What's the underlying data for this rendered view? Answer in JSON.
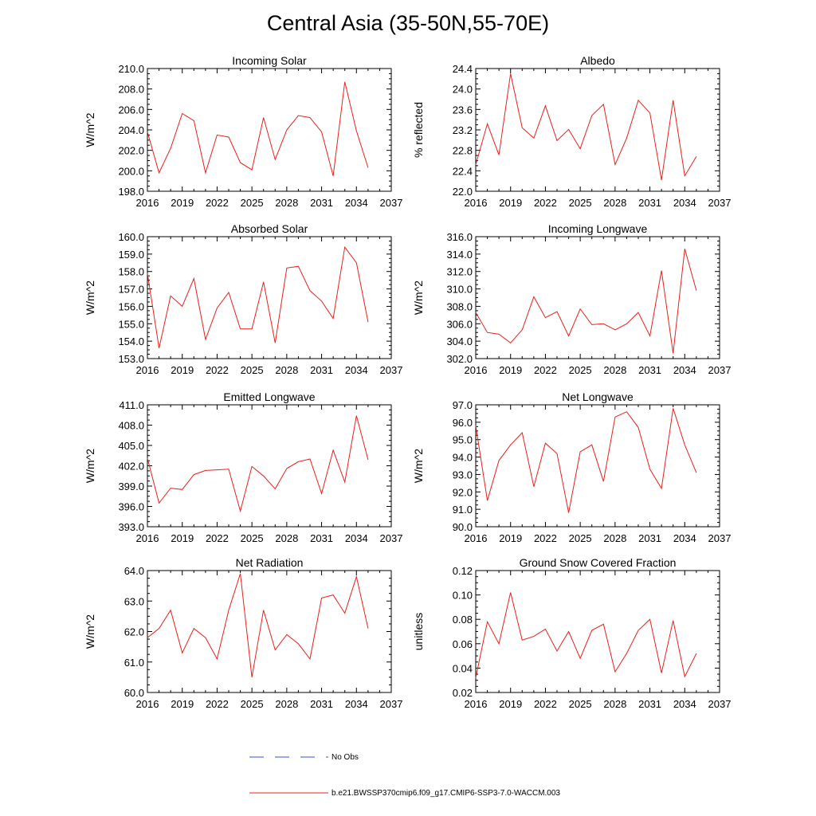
{
  "page": {
    "title": "Central Asia (35-50N,55-70E)"
  },
  "legend": {
    "items": [
      {
        "label": "No Obs",
        "color": "#3b4bd8",
        "style": "dashed"
      },
      {
        "label": "b.e21.BWSSP370cmip6.f09_g17.CMIP6-SSP3-7.0-WACCM.003",
        "color": "#e8201c",
        "style": "solid"
      }
    ]
  },
  "chart_data": [
    {
      "type": "line",
      "title": "Incoming Solar",
      "xlabel": "",
      "ylabel": "W/m^2",
      "xlim": [
        2016,
        2037
      ],
      "xticks": [
        "2016",
        "2019",
        "2022",
        "2025",
        "2028",
        "2031",
        "2034",
        "2037"
      ],
      "ylim": [
        198.0,
        210.0
      ],
      "yticks": [
        "198.0",
        "200.0",
        "202.0",
        "204.0",
        "206.0",
        "208.0",
        "210.0"
      ],
      "series": [
        {
          "color": "#e8201c",
          "x": [
            2016,
            2017,
            2018,
            2019,
            2020,
            2021,
            2022,
            2023,
            2024,
            2025,
            2026,
            2027,
            2028,
            2029,
            2030,
            2031,
            2032,
            2033,
            2034,
            2035
          ],
          "values": [
            203.8,
            199.8,
            202.2,
            205.6,
            204.9,
            199.8,
            203.5,
            203.3,
            200.8,
            200.1,
            205.2,
            201.1,
            204.0,
            205.4,
            205.2,
            203.8,
            199.5,
            208.7,
            203.9,
            200.3
          ]
        }
      ]
    },
    {
      "type": "line",
      "title": "Albedo",
      "xlabel": "",
      "ylabel": "% reflected",
      "xlim": [
        2016,
        2037
      ],
      "xticks": [
        "2016",
        "2019",
        "2022",
        "2025",
        "2028",
        "2031",
        "2034",
        "2037"
      ],
      "ylim": [
        22.0,
        24.4
      ],
      "yticks": [
        "22.0",
        "22.4",
        "22.8",
        "23.2",
        "23.6",
        "24.0",
        "24.4"
      ],
      "series": [
        {
          "color": "#e8201c",
          "x": [
            2016,
            2017,
            2018,
            2019,
            2020,
            2021,
            2022,
            2023,
            2024,
            2025,
            2026,
            2027,
            2028,
            2029,
            2030,
            2031,
            2032,
            2033,
            2034,
            2035
          ],
          "values": [
            22.52,
            23.32,
            22.71,
            24.3,
            23.24,
            23.04,
            23.67,
            22.99,
            23.21,
            22.83,
            23.48,
            23.7,
            22.52,
            23.04,
            23.78,
            23.53,
            22.22,
            23.78,
            22.3,
            22.68
          ]
        }
      ]
    },
    {
      "type": "line",
      "title": "Absorbed Solar",
      "xlabel": "",
      "ylabel": "W/m^2",
      "xlim": [
        2016,
        2037
      ],
      "xticks": [
        "2016",
        "2019",
        "2022",
        "2025",
        "2028",
        "2031",
        "2034",
        "2037"
      ],
      "ylim": [
        153.0,
        160.0
      ],
      "yticks": [
        "153.0",
        "154.0",
        "155.0",
        "156.0",
        "157.0",
        "158.0",
        "159.0",
        "160.0"
      ],
      "series": [
        {
          "color": "#e8201c",
          "x": [
            2016,
            2017,
            2018,
            2019,
            2020,
            2021,
            2022,
            2023,
            2024,
            2025,
            2026,
            2027,
            2028,
            2029,
            2030,
            2031,
            2032,
            2033,
            2034,
            2035
          ],
          "values": [
            157.9,
            153.6,
            156.6,
            156.0,
            157.6,
            154.1,
            155.9,
            156.8,
            154.7,
            154.7,
            157.4,
            153.9,
            158.2,
            158.3,
            156.9,
            156.3,
            155.3,
            159.4,
            158.5,
            155.1
          ]
        }
      ]
    },
    {
      "type": "line",
      "title": "Incoming Longwave",
      "xlabel": "",
      "ylabel": "W/m^2",
      "xlim": [
        2016,
        2037
      ],
      "xticks": [
        "2016",
        "2019",
        "2022",
        "2025",
        "2028",
        "2031",
        "2034",
        "2037"
      ],
      "ylim": [
        302.0,
        316.0
      ],
      "yticks": [
        "302.0",
        "304.0",
        "306.0",
        "308.0",
        "310.0",
        "312.0",
        "314.0",
        "316.0"
      ],
      "series": [
        {
          "color": "#e8201c",
          "x": [
            2016,
            2017,
            2018,
            2019,
            2020,
            2021,
            2022,
            2023,
            2024,
            2025,
            2026,
            2027,
            2028,
            2029,
            2030,
            2031,
            2032,
            2033,
            2034,
            2035
          ],
          "values": [
            307.3,
            305.0,
            304.8,
            303.8,
            305.3,
            309.1,
            306.7,
            307.4,
            304.6,
            307.7,
            305.9,
            306.0,
            305.3,
            306.0,
            307.3,
            304.6,
            312.1,
            302.6,
            314.6,
            309.8
          ]
        }
      ]
    },
    {
      "type": "line",
      "title": "Emitted Longwave",
      "xlabel": "",
      "ylabel": "W/m^2",
      "xlim": [
        2016,
        2037
      ],
      "xticks": [
        "2016",
        "2019",
        "2022",
        "2025",
        "2028",
        "2031",
        "2034",
        "2037"
      ],
      "ylim": [
        393.0,
        411.0
      ],
      "yticks": [
        "393.0",
        "396.0",
        "399.0",
        "402.0",
        "405.0",
        "408.0",
        "411.0"
      ],
      "series": [
        {
          "color": "#e8201c",
          "x": [
            2016,
            2017,
            2018,
            2019,
            2020,
            2021,
            2022,
            2023,
            2024,
            2025,
            2026,
            2027,
            2028,
            2029,
            2030,
            2031,
            2032,
            2033,
            2034,
            2035
          ],
          "values": [
            403.1,
            396.5,
            398.7,
            398.5,
            400.7,
            401.3,
            401.4,
            401.5,
            395.3,
            401.9,
            400.5,
            398.6,
            401.6,
            402.6,
            403.0,
            397.9,
            404.3,
            399.6,
            409.4,
            402.9
          ]
        }
      ]
    },
    {
      "type": "line",
      "title": "Net Longwave",
      "xlabel": "",
      "ylabel": "W/m^2",
      "xlim": [
        2016,
        2037
      ],
      "xticks": [
        "2016",
        "2019",
        "2022",
        "2025",
        "2028",
        "2031",
        "2034",
        "2037"
      ],
      "ylim": [
        90.0,
        97.0
      ],
      "yticks": [
        "90.0",
        "91.0",
        "92.0",
        "93.0",
        "94.0",
        "95.0",
        "96.0",
        "97.0"
      ],
      "series": [
        {
          "color": "#e8201c",
          "x": [
            2016,
            2017,
            2018,
            2019,
            2020,
            2021,
            2022,
            2023,
            2024,
            2025,
            2026,
            2027,
            2028,
            2029,
            2030,
            2031,
            2032,
            2033,
            2034,
            2035
          ],
          "values": [
            95.8,
            91.5,
            93.8,
            94.7,
            95.4,
            92.3,
            94.8,
            94.2,
            90.8,
            94.3,
            94.7,
            92.6,
            96.3,
            96.6,
            95.7,
            93.3,
            92.2,
            96.8,
            94.7,
            93.1
          ]
        }
      ]
    },
    {
      "type": "line",
      "title": "Net Radiation",
      "xlabel": "",
      "ylabel": "W/m^2",
      "xlim": [
        2016,
        2037
      ],
      "xticks": [
        "2016",
        "2019",
        "2022",
        "2025",
        "2028",
        "2031",
        "2034",
        "2037"
      ],
      "ylim": [
        60.0,
        64.0
      ],
      "yticks": [
        "60.0",
        "61.0",
        "62.0",
        "63.0",
        "64.0"
      ],
      "series": [
        {
          "color": "#e8201c",
          "x": [
            2016,
            2017,
            2018,
            2019,
            2020,
            2021,
            2022,
            2023,
            2024,
            2025,
            2026,
            2027,
            2028,
            2029,
            2030,
            2031,
            2032,
            2033,
            2034,
            2035
          ],
          "values": [
            61.8,
            62.1,
            62.7,
            61.3,
            62.1,
            61.8,
            61.1,
            62.7,
            63.9,
            60.5,
            62.7,
            61.4,
            61.9,
            61.6,
            61.1,
            63.1,
            63.2,
            62.6,
            63.8,
            62.1
          ]
        }
      ]
    },
    {
      "type": "line",
      "title": "Ground Snow Covered Fraction",
      "xlabel": "",
      "ylabel": "unitless",
      "xlim": [
        2016,
        2037
      ],
      "xticks": [
        "2016",
        "2019",
        "2022",
        "2025",
        "2028",
        "2031",
        "2034",
        "2037"
      ],
      "ylim": [
        0.02,
        0.12
      ],
      "yticks": [
        "0.02",
        "0.04",
        "0.06",
        "0.08",
        "0.10",
        "0.12"
      ],
      "series": [
        {
          "color": "#e8201c",
          "x": [
            2016,
            2017,
            2018,
            2019,
            2020,
            2021,
            2022,
            2023,
            2024,
            2025,
            2026,
            2027,
            2028,
            2029,
            2030,
            2031,
            2032,
            2033,
            2034,
            2035
          ],
          "values": [
            0.032,
            0.078,
            0.06,
            0.102,
            0.063,
            0.066,
            0.072,
            0.054,
            0.07,
            0.048,
            0.071,
            0.076,
            0.037,
            0.052,
            0.071,
            0.08,
            0.036,
            0.079,
            0.033,
            0.052
          ]
        }
      ]
    }
  ]
}
